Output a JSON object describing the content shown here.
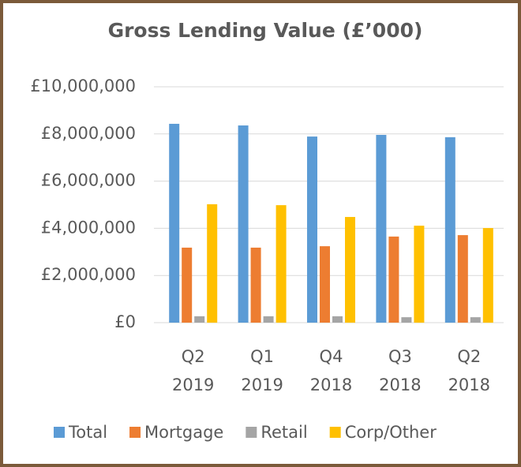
{
  "chart_data": {
    "type": "bar",
    "title": "Gross Lending Value (£’000)",
    "categories": [
      "Q2 2019",
      "Q1 2019",
      "Q4 2018",
      "Q3 2018",
      "Q2 2018"
    ],
    "series": [
      {
        "name": "Total",
        "color": "#5b9bd5",
        "values": [
          8430000,
          8360000,
          7890000,
          7960000,
          7860000
        ]
      },
      {
        "name": "Mortgage",
        "color": "#ed7d31",
        "values": [
          3180000,
          3180000,
          3240000,
          3650000,
          3710000
        ]
      },
      {
        "name": "Retail",
        "color": "#a5a5a5",
        "values": [
          270000,
          270000,
          270000,
          230000,
          230000
        ]
      },
      {
        "name": "Corp/Other",
        "color": "#ffc000",
        "values": [
          5020000,
          4980000,
          4480000,
          4110000,
          4010000
        ]
      }
    ],
    "ylim": [
      0,
      10000000
    ],
    "yticks": [
      {
        "value": 0,
        "label": "£0"
      },
      {
        "value": 2000000,
        "label": "£2,000,000"
      },
      {
        "value": 4000000,
        "label": "£4,000,000"
      },
      {
        "value": 6000000,
        "label": "£6,000,000"
      },
      {
        "value": 8000000,
        "label": "£8,000,000"
      },
      {
        "value": 10000000,
        "label": "£10,000,000"
      }
    ],
    "grid": true,
    "legend": "bottom"
  }
}
